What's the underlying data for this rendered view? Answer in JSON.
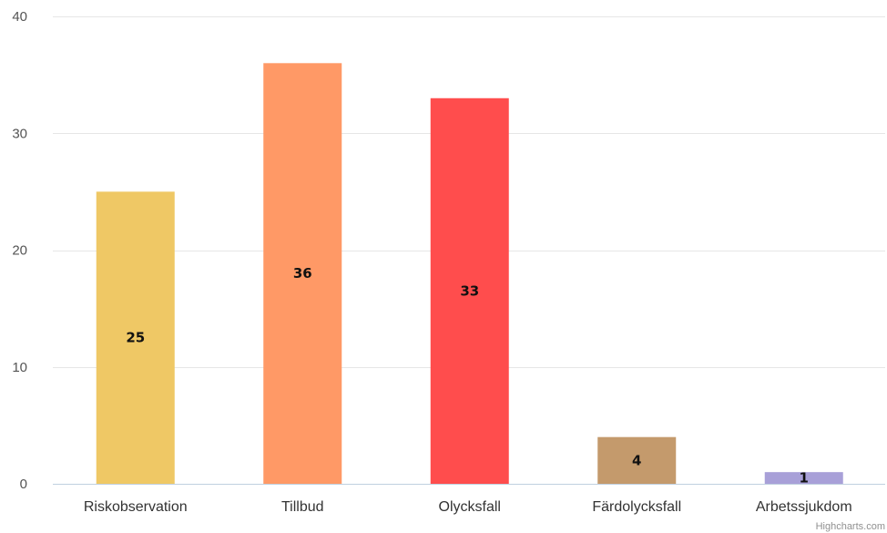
{
  "chart_data": {
    "type": "bar",
    "categories": [
      "Riskobservation",
      "Tillbud",
      "Olycksfall",
      "Färdolycksfall",
      "Arbetssjukdom"
    ],
    "values": [
      25,
      36,
      33,
      4,
      1
    ],
    "colors": [
      "#EFC865",
      "#FF9966",
      "#FF4D4D",
      "#C49A6C",
      "#A8A0D8"
    ],
    "data_labels": [
      "25",
      "36",
      "33",
      "4",
      "1"
    ],
    "title": "",
    "xlabel": "",
    "ylabel": "",
    "ylim": [
      0,
      40
    ],
    "yticks": [
      0,
      10,
      20,
      30,
      40
    ],
    "ytick_labels": [
      "0",
      "10",
      "20",
      "30",
      "40"
    ],
    "grid": true,
    "legend": "none",
    "gridline_color": "#E6E6E6",
    "axis_line_color": "#C0D0E0"
  },
  "credits": "Highcharts.com"
}
